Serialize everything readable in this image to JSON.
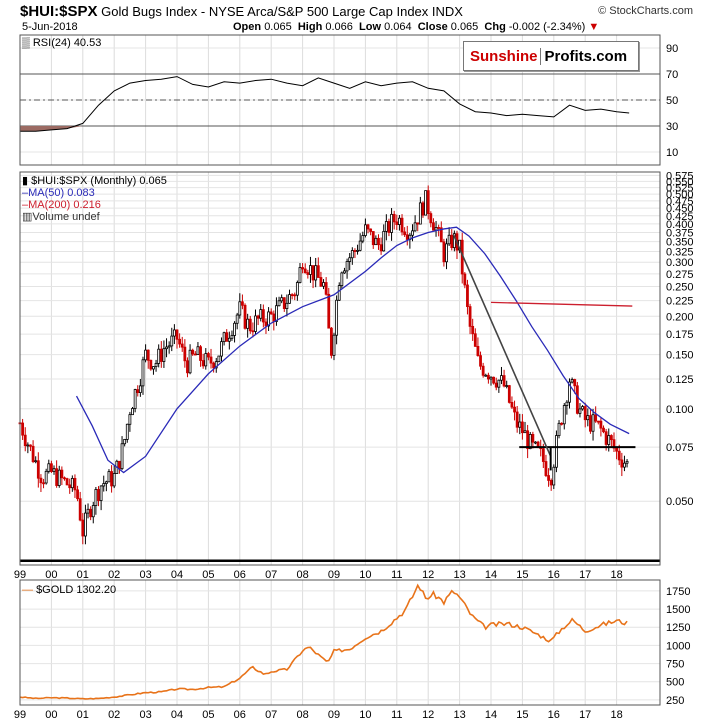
{
  "header": {
    "symbol": "$HUI:$SPX",
    "title": "Gold Bugs Index - NYSE Arca/S&P 500 Large Cap Index",
    "exchange": "INDX",
    "source": "© StockCharts.com",
    "date": "5-Jun-2018",
    "open_label": "Open",
    "open": "0.065",
    "high_label": "High",
    "high": "0.066",
    "low_label": "Low",
    "low": "0.064",
    "close_label": "Close",
    "close": "0.065",
    "chg_label": "Chg",
    "chg": "-0.002 (-2.34%)"
  },
  "logo": {
    "part1": "Sunshine",
    "part2": "Profits.com"
  },
  "colors": {
    "up": "#000000",
    "down": "#cc0000",
    "ma50": "#2a2ab8",
    "ma200": "#cc1e2d",
    "gold": "#e8731a",
    "rsi_fill": "#9c6b63"
  },
  "chart_data": [
    {
      "type": "line",
      "name": "rsi_panel",
      "legend": "RSI(24) 40.53",
      "y_ticks": [
        10,
        30,
        50,
        70,
        90
      ],
      "ylim": [
        0,
        100
      ],
      "reference_lines": [
        30,
        50,
        70
      ],
      "x_tick_labels": [
        "99",
        "00",
        "01",
        "02",
        "03",
        "04",
        "05",
        "06",
        "07",
        "08",
        "09",
        "10",
        "11",
        "12",
        "13",
        "14",
        "15",
        "16",
        "17",
        "18"
      ],
      "x": [
        1999.0,
        1999.5,
        2000.0,
        2000.5,
        2001.0,
        2001.5,
        2002.0,
        2002.5,
        2003.0,
        2003.5,
        2004.0,
        2004.5,
        2005.0,
        2005.5,
        2006.0,
        2006.5,
        2007.0,
        2007.5,
        2008.0,
        2008.5,
        2009.0,
        2009.5,
        2010.0,
        2010.5,
        2011.0,
        2011.5,
        2012.0,
        2012.5,
        2013.0,
        2013.5,
        2014.0,
        2014.5,
        2015.0,
        2015.5,
        2016.0,
        2016.5,
        2017.0,
        2017.5,
        2018.0,
        2018.4
      ],
      "values": [
        26,
        26,
        27,
        28,
        32,
        46,
        57,
        63,
        65,
        66,
        68,
        62,
        60,
        64,
        63,
        65,
        66,
        63,
        61,
        67,
        63,
        59,
        64,
        61,
        63,
        64,
        59,
        57,
        47,
        41,
        40,
        38,
        39,
        38,
        37,
        46,
        42,
        43,
        41,
        40
      ]
    },
    {
      "type": "candlestick",
      "name": "price_panel",
      "scale": "log",
      "legend": {
        "series": "$HUI:$SPX (Monthly) 0.065",
        "ma50": "MA(50) 0.083",
        "ma200": "MA(200) 0.216",
        "volume": "Volume undef"
      },
      "y_ticks": [
        "0.050",
        "0.075",
        "0.100",
        "0.125",
        "0.150",
        "0.175",
        "0.200",
        "0.225",
        "0.250",
        "0.275",
        "0.300",
        "0.325",
        "0.350",
        "0.375",
        "0.400",
        "0.425",
        "0.450",
        "0.475",
        "0.500",
        "0.525",
        "0.550",
        "0.575"
      ],
      "ylim": [
        0.031,
        0.59
      ],
      "x_tick_labels": [
        "99",
        "00",
        "01",
        "02",
        "03",
        "04",
        "05",
        "06",
        "07",
        "08",
        "09",
        "10",
        "11",
        "12",
        "13",
        "14",
        "15",
        "16",
        "17",
        "18"
      ],
      "price_path": {
        "x": [
          1999.0,
          1999.3,
          1999.7,
          2000.0,
          2000.4,
          2000.8,
          2001.0,
          2001.3,
          2001.6,
          2002.0,
          2002.3,
          2002.5,
          2002.8,
          2003.0,
          2003.3,
          2003.6,
          2004.0,
          2004.3,
          2004.6,
          2005.0,
          2005.3,
          2005.6,
          2006.0,
          2006.3,
          2006.6,
          2007.0,
          2007.4,
          2007.8,
          2008.0,
          2008.3,
          2008.7,
          2008.9,
          2009.2,
          2009.6,
          2010.0,
          2010.4,
          2010.8,
          2011.0,
          2011.4,
          2011.7,
          2011.9,
          2012.2,
          2012.5,
          2012.8,
          2013.0,
          2013.3,
          2013.6,
          2014.0,
          2014.4,
          2014.8,
          2015.0,
          2015.3,
          2015.6,
          2015.9,
          2016.2,
          2016.5,
          2016.8,
          2017.0,
          2017.4,
          2017.8,
          2018.0,
          2018.4
        ],
        "values": [
          0.09,
          0.075,
          0.06,
          0.062,
          0.058,
          0.054,
          0.04,
          0.05,
          0.057,
          0.06,
          0.076,
          0.1,
          0.125,
          0.15,
          0.14,
          0.158,
          0.17,
          0.14,
          0.15,
          0.14,
          0.15,
          0.175,
          0.21,
          0.185,
          0.195,
          0.2,
          0.22,
          0.245,
          0.31,
          0.28,
          0.25,
          0.15,
          0.29,
          0.32,
          0.38,
          0.34,
          0.4,
          0.42,
          0.38,
          0.43,
          0.48,
          0.4,
          0.32,
          0.36,
          0.33,
          0.19,
          0.14,
          0.13,
          0.12,
          0.09,
          0.085,
          0.075,
          0.07,
          0.06,
          0.09,
          0.125,
          0.1,
          0.092,
          0.088,
          0.078,
          0.072,
          0.065
        ]
      },
      "ma50": {
        "x": [
          2000.8,
          2001.3,
          2001.8,
          2002.3,
          2003.0,
          2004.0,
          2005.0,
          2006.0,
          2007.0,
          2008.0,
          2009.0,
          2010.0,
          2010.5,
          2011.0,
          2011.5,
          2012.0,
          2012.5,
          2012.9,
          2013.3,
          2013.8,
          2014.3,
          2014.8,
          2015.3,
          2015.8,
          2016.3,
          2016.8,
          2017.3,
          2017.8,
          2018.4
        ],
        "values": [
          0.11,
          0.088,
          0.068,
          0.062,
          0.07,
          0.1,
          0.13,
          0.16,
          0.19,
          0.215,
          0.235,
          0.28,
          0.31,
          0.34,
          0.36,
          0.375,
          0.385,
          0.39,
          0.365,
          0.32,
          0.27,
          0.225,
          0.185,
          0.155,
          0.128,
          0.108,
          0.097,
          0.089,
          0.083
        ]
      },
      "ma200": {
        "x": [
          2014.0,
          2018.5
        ],
        "values": [
          0.222,
          0.216
        ]
      },
      "annotations": {
        "horizontal_line": {
          "value": 0.075,
          "x": [
            2014.9,
            2018.6
          ]
        },
        "trend_line": {
          "x": [
            2012.8,
            2015.9
          ],
          "values": [
            0.37,
            0.07
          ]
        },
        "vertical_line": {
          "x": 2015.9,
          "values": [
            0.063,
            0.075
          ]
        },
        "bottom_rule": {
          "value": 0.032
        }
      }
    },
    {
      "type": "line",
      "name": "gold_panel",
      "legend": "$GOLD 1302.20",
      "y_ticks": [
        250,
        500,
        750,
        1000,
        1250,
        1500,
        1750
      ],
      "ylim": [
        180,
        1900
      ],
      "x_tick_labels": [
        "99",
        "00",
        "01",
        "02",
        "03",
        "04",
        "05",
        "06",
        "07",
        "08",
        "09",
        "10",
        "11",
        "12",
        "13",
        "14",
        "15",
        "16",
        "17",
        "18"
      ],
      "x": [
        1999.0,
        1999.5,
        2000.0,
        2000.5,
        2001.0,
        2001.5,
        2002.0,
        2002.5,
        2003.0,
        2003.5,
        2004.0,
        2004.5,
        2005.0,
        2005.5,
        2006.0,
        2006.4,
        2006.8,
        2007.0,
        2007.5,
        2008.0,
        2008.2,
        2008.8,
        2009.0,
        2009.5,
        2010.0,
        2010.5,
        2011.0,
        2011.3,
        2011.7,
        2011.9,
        2012.2,
        2012.5,
        2012.8,
        2013.0,
        2013.4,
        2013.8,
        2014.0,
        2014.5,
        2015.0,
        2015.5,
        2015.9,
        2016.3,
        2016.6,
        2017.0,
        2017.5,
        2018.0,
        2018.4
      ],
      "values": [
        290,
        270,
        280,
        275,
        265,
        270,
        290,
        320,
        350,
        360,
        400,
        395,
        420,
        430,
        550,
        700,
        600,
        640,
        670,
        930,
        980,
        760,
        920,
        950,
        1110,
        1200,
        1380,
        1500,
        1850,
        1650,
        1700,
        1600,
        1750,
        1660,
        1400,
        1250,
        1280,
        1300,
        1250,
        1150,
        1060,
        1250,
        1350,
        1200,
        1280,
        1340,
        1300
      ]
    }
  ]
}
